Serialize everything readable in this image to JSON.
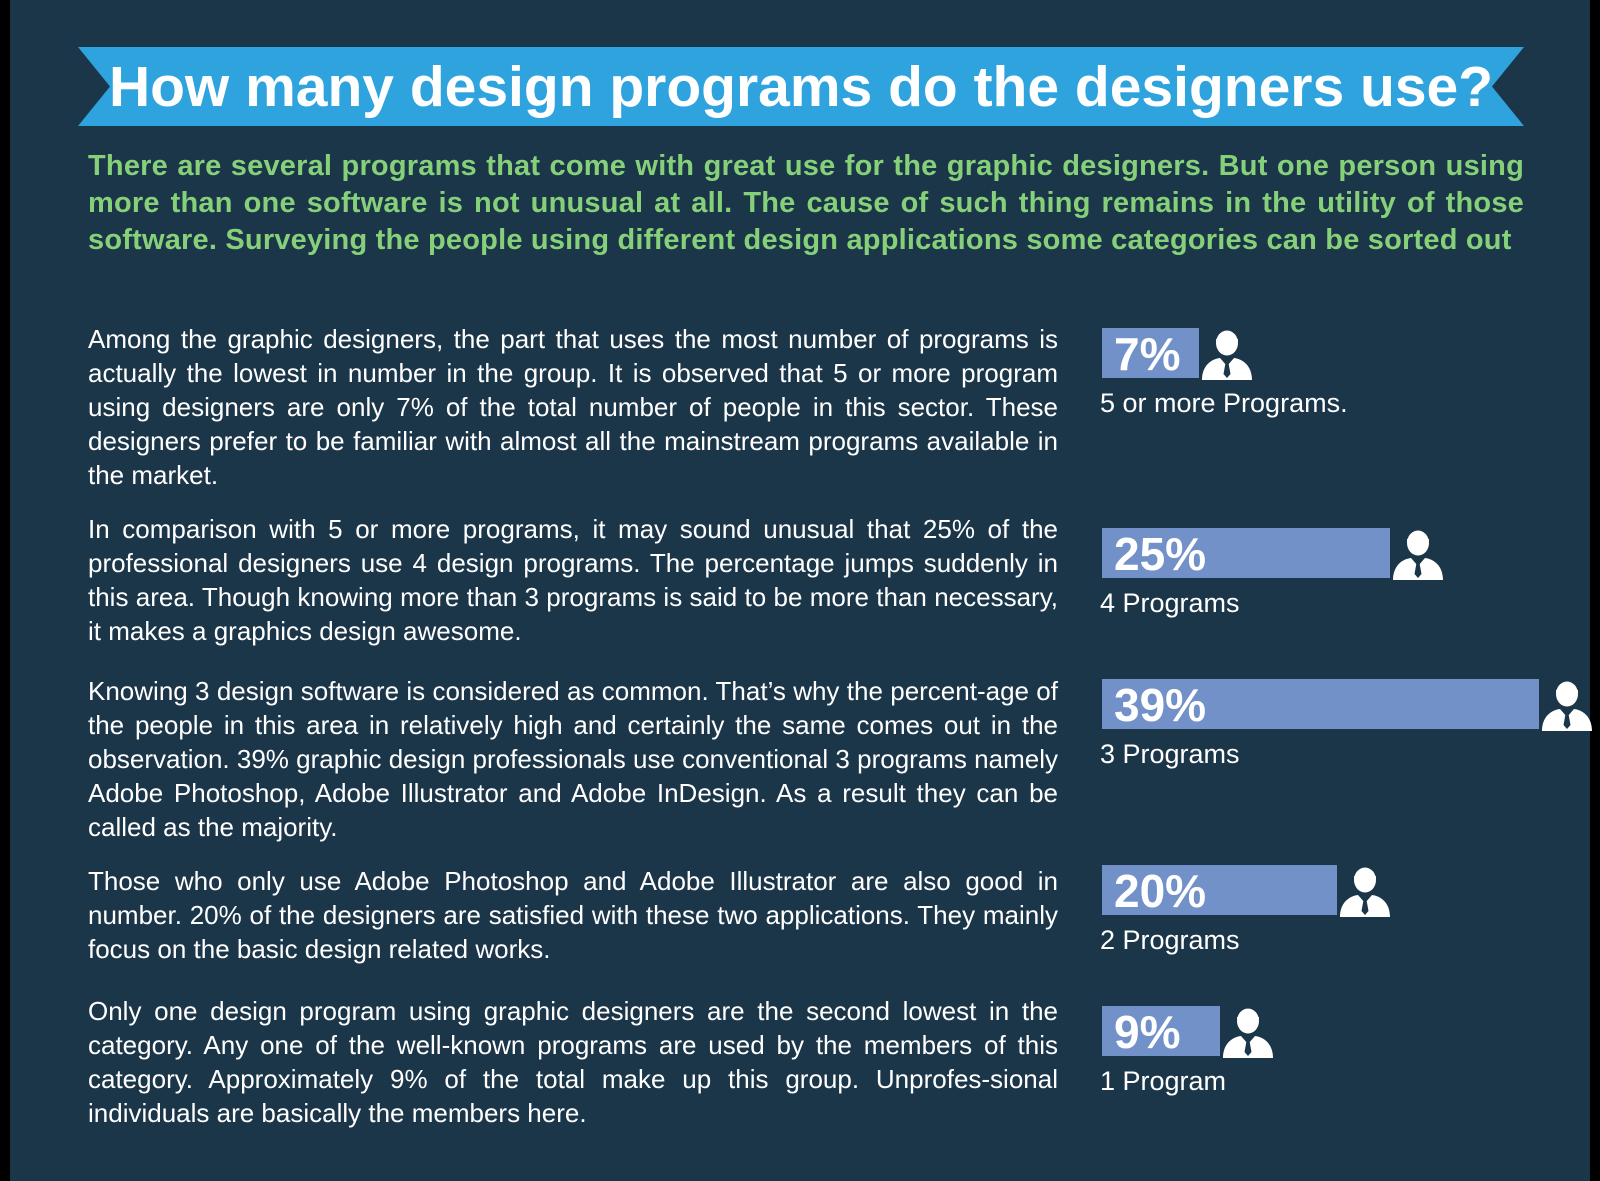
{
  "banner": {
    "title": "How many design programs do the designers use?",
    "color": "#2ea3dd"
  },
  "intro": "There are several programs that come with great use for the graphic designers. But one person using more than one software is not unusual at all. The cause of such thing remains in the utility of those software. Surveying the people using different design applications some categories can be sorted out",
  "colors": {
    "background": "#1b3549",
    "intro_text": "#86d07a",
    "bar": "#7191c8",
    "text": "#ffffff"
  },
  "sections": [
    {
      "description": "Among the graphic designers, the part that uses the most number of programs is actually the lowest in number in the group. It is observed that 5 or more program using designers are only 7% of the total number of people in this sector. These designers prefer to be familiar with almost all the mainstream programs available in the market.",
      "percent_label": "7%",
      "percent": 7,
      "category": "5 or more Programs.",
      "icon": "person-icon"
    },
    {
      "description": "In comparison with 5 or more programs, it may sound unusual that 25% of the professional designers use 4 design programs. The percentage jumps suddenly in this area. Though knowing more than 3 programs is said to be more than necessary, it makes a graphics design awesome.",
      "percent_label": "25%",
      "percent": 25,
      "category": "4 Programs",
      "icon": "person-icon"
    },
    {
      "description": "Knowing 3 design software is considered as common. That’s why the percent-age of the people in this area in relatively high and certainly the same comes out in the observation. 39% graphic design professionals use conventional 3 programs namely Adobe Photoshop, Adobe Illustrator and Adobe InDesign. As a result they can be called as the majority.",
      "percent_label": "39%",
      "percent": 39,
      "category": "3 Programs",
      "icon": "person-icon"
    },
    {
      "description": "Those who only use Adobe Photoshop and Adobe Illustrator are also good in number. 20% of the designers are satisfied with these two applications. They mainly focus on the basic design related works.",
      "percent_label": "20%",
      "percent": 20,
      "category": "2 Programs",
      "icon": "person-icon"
    },
    {
      "description": "Only one design program using graphic designers are the second lowest in the category. Any one of the well-known programs are used by the members of this category. Approximately 9% of the total make up this group. Unprofes-sional individuals are basically the members here.",
      "percent_label": "9%",
      "percent": 9,
      "category": "1 Program",
      "icon": "person-icon"
    }
  ]
}
